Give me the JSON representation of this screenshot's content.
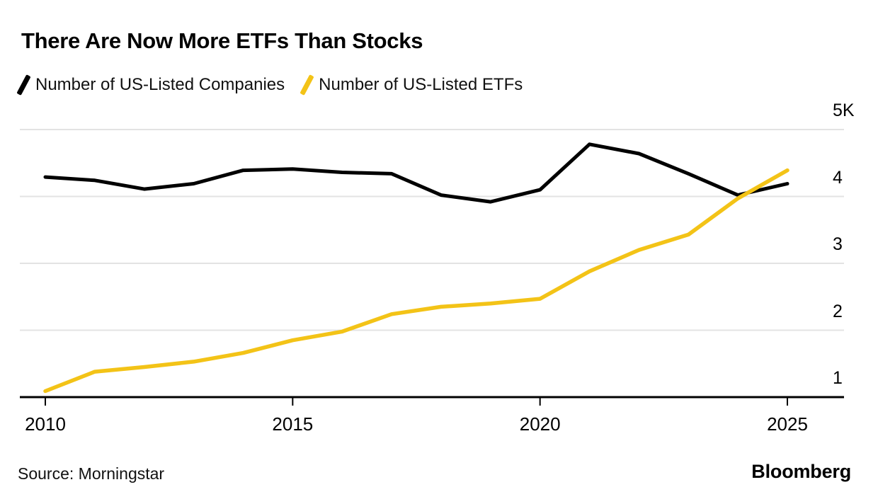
{
  "header": {
    "title": "There Are Now More ETFs Than Stocks"
  },
  "footer": {
    "source": "Source: Morningstar",
    "brand": "Bloomberg"
  },
  "colors": {
    "background": "#ffffff",
    "grid": "#e3e3e3",
    "axis": "#000000",
    "companies_line": "#000000",
    "etfs_line": "#f3c317",
    "text": "#000000"
  },
  "chart_data": {
    "type": "line",
    "title": "There Are Now More ETFs Than Stocks",
    "x": [
      2010,
      2011,
      2012,
      2013,
      2014,
      2015,
      2016,
      2017,
      2018,
      2019,
      2020,
      2021,
      2022,
      2023,
      2024,
      2025
    ],
    "series": [
      {
        "name": "Number of US-Listed Companies",
        "color": "#000000",
        "values": [
          4290,
          4240,
          4110,
          4190,
          4390,
          4410,
          4360,
          4340,
          4020,
          3920,
          4100,
          4780,
          4640,
          4340,
          4020,
          4190
        ]
      },
      {
        "name": "Number of US-Listed ETFs",
        "color": "#f3c317",
        "values": [
          1090,
          1380,
          1450,
          1530,
          1660,
          1850,
          1980,
          2240,
          2350,
          2400,
          2470,
          2880,
          3200,
          3430,
          3970,
          4390
        ]
      }
    ],
    "xtick_years": [
      2010,
      2015,
      2020,
      2025
    ],
    "xtick_labels": [
      "2010",
      "2015",
      "2020",
      "2025"
    ],
    "ytick_values": [
      1000,
      2000,
      3000,
      4000,
      5000
    ],
    "ytick_labels": [
      "1",
      "2",
      "3",
      "4",
      "5K"
    ],
    "ylim": [
      1000,
      5000
    ],
    "unit": "thousands (K)",
    "grid": "horizontal",
    "legend_position": "top-left",
    "ylabel": "",
    "xlabel": ""
  }
}
